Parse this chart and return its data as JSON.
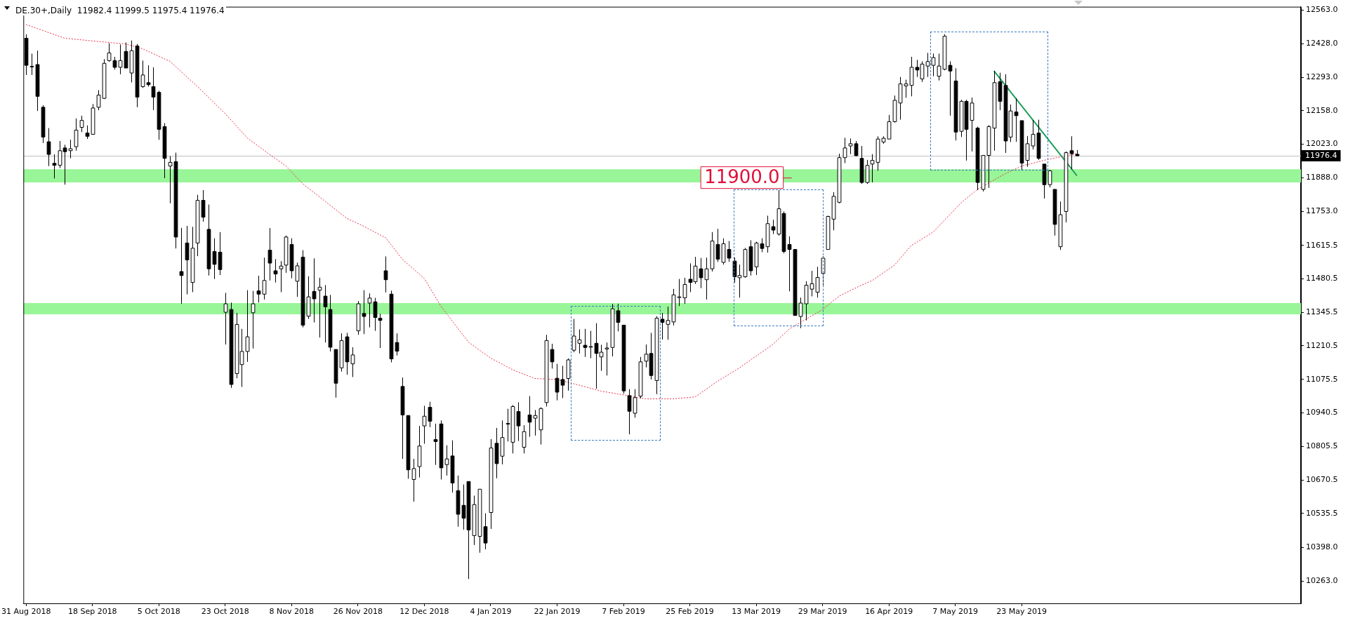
{
  "chart_data": {
    "type": "candlestick",
    "title": "DE.30+,Daily  11982.4 11999.5 11975.4 11976.4",
    "categories": [
      "31 Aug 2018",
      null,
      null,
      null,
      null,
      null,
      null,
      null,
      null,
      null,
      null,
      null,
      "18 Sep 2018",
      null,
      null,
      null,
      null,
      null,
      null,
      null,
      null,
      null,
      null,
      null,
      "5 Oct 2018",
      null,
      null,
      null,
      null,
      null,
      null,
      null,
      null,
      null,
      null,
      null,
      "23 Oct 2018",
      null,
      null,
      null,
      null,
      null,
      null,
      null,
      null,
      null,
      null,
      null,
      "8 Nov 2018",
      null,
      null,
      null,
      null,
      null,
      null,
      null,
      null,
      null,
      null,
      null,
      "26 Nov 2018",
      null,
      null,
      null,
      null,
      null,
      null,
      null,
      null,
      null,
      null,
      null,
      "12 Dec 2018",
      null,
      null,
      null,
      null,
      null,
      null,
      null,
      null,
      null,
      null,
      null,
      "4 Jan 2019",
      null,
      null,
      null,
      null,
      null,
      null,
      null,
      null,
      null,
      null,
      null,
      "22 Jan 2019",
      null,
      null,
      null,
      null,
      null,
      null,
      null,
      null,
      null,
      null,
      null,
      "7 Feb 2019",
      null,
      null,
      null,
      null,
      null,
      null,
      null,
      null,
      null,
      null,
      null,
      "25 Feb 2019",
      null,
      null,
      null,
      null,
      null,
      null,
      null,
      null,
      null,
      null,
      null,
      "13 Mar 2019",
      null,
      null,
      null,
      null,
      null,
      null,
      null,
      null,
      null,
      null,
      null,
      "29 Mar 2019",
      null,
      null,
      null,
      null,
      null,
      null,
      null,
      null,
      null,
      null,
      null,
      "16 Apr 2019",
      null,
      null,
      null,
      null,
      null,
      null,
      null,
      null,
      null,
      null,
      null,
      "7 May 2019",
      null,
      null,
      null,
      null,
      null,
      null,
      null,
      null,
      null,
      null,
      null,
      "23 May 2019",
      null,
      null,
      null,
      null,
      null,
      null,
      null,
      null,
      null,
      null,
      null,
      null,
      null,
      null,
      null,
      null,
      null,
      null,
      null,
      null,
      null,
      null,
      null,
      null,
      null,
      null,
      null,
      null,
      null,
      null,
      null,
      null,
      null,
      null,
      null,
      null,
      null,
      null,
      null,
      null,
      null,
      null,
      null,
      null,
      null,
      null,
      null,
      null,
      null,
      null
    ],
    "ohlc": [
      [
        12450,
        12466,
        12302,
        12341
      ],
      [
        12336,
        12388,
        12302,
        12337
      ],
      [
        12344,
        12400,
        12157,
        12216
      ],
      [
        12172,
        12180,
        12028,
        12052
      ],
      [
        12033,
        12088,
        11935,
        11982
      ],
      [
        11946,
        11982,
        11885,
        11938
      ],
      [
        11938,
        12036,
        11927,
        11997
      ],
      [
        12008,
        12021,
        11860,
        11993
      ],
      [
        11997,
        12041,
        11966,
        12005
      ],
      [
        12013,
        12127,
        11997,
        12080
      ],
      [
        12091,
        12138,
        12072,
        12119
      ],
      [
        12068,
        12099,
        12044,
        12055
      ],
      [
        12063,
        12185,
        12061,
        12169
      ],
      [
        12172,
        12241,
        12160,
        12221
      ],
      [
        12208,
        12366,
        12205,
        12349
      ],
      [
        12360,
        12430,
        12355,
        12391
      ],
      [
        12360,
        12375,
        12324,
        12333
      ],
      [
        12333,
        12425,
        12305,
        12360
      ],
      [
        12397,
        12433,
        12330,
        12330
      ],
      [
        12310,
        12441,
        12272,
        12400
      ],
      [
        12419,
        12427,
        12172,
        12213
      ],
      [
        12255,
        12360,
        12250,
        12302
      ],
      [
        12271,
        12341,
        12255,
        12263
      ],
      [
        12255,
        12333,
        12161,
        12213
      ],
      [
        12232,
        12238,
        12041,
        12083
      ],
      [
        12094,
        12108,
        11886,
        11966
      ],
      [
        11935,
        11975,
        11785,
        11950
      ],
      [
        11953,
        11989,
        11603,
        11649
      ],
      [
        11510,
        11686,
        11380,
        11494
      ],
      [
        11625,
        11694,
        11418,
        11557
      ],
      [
        11466,
        11690,
        11427,
        11604
      ],
      [
        11625,
        11819,
        11572,
        11797
      ],
      [
        11797,
        11838,
        11711,
        11729
      ],
      [
        11680,
        11780,
        11494,
        11521
      ],
      [
        11591,
        11644,
        11480,
        11539
      ],
      [
        11588,
        11669,
        11496,
        11518
      ],
      [
        11346,
        11424,
        11216,
        11380
      ],
      [
        11357,
        11385,
        11041,
        11055
      ],
      [
        11099,
        11343,
        11080,
        11297
      ],
      [
        11135,
        11279,
        11045,
        11188
      ],
      [
        11188,
        11435,
        11146,
        11247
      ],
      [
        11344,
        11432,
        11200,
        11380
      ],
      [
        11432,
        11493,
        11385,
        11419
      ],
      [
        11419,
        11566,
        11397,
        11474
      ],
      [
        11596,
        11685,
        11474,
        11544
      ],
      [
        11513,
        11560,
        11466,
        11500
      ],
      [
        11521,
        11552,
        11427,
        11532
      ],
      [
        11536,
        11655,
        11505,
        11649
      ],
      [
        11619,
        11644,
        11483,
        11513
      ],
      [
        11471,
        11546,
        11408,
        11533
      ],
      [
        11568,
        11596,
        11285,
        11294
      ],
      [
        11330,
        11491,
        11319,
        11408
      ],
      [
        11430,
        11563,
        11305,
        11400
      ],
      [
        11435,
        11485,
        11244,
        11447
      ],
      [
        11411,
        11455,
        11224,
        11368
      ],
      [
        11357,
        11416,
        11188,
        11205
      ],
      [
        11196,
        11196,
        11002,
        11060
      ],
      [
        11122,
        11261,
        11107,
        11232
      ],
      [
        11247,
        11263,
        11094,
        11146
      ],
      [
        11138,
        11205,
        11085,
        11174
      ],
      [
        11271,
        11391,
        11255,
        11380
      ],
      [
        11341,
        11435,
        11258,
        11329
      ],
      [
        11383,
        11422,
        11285,
        11403
      ],
      [
        11388,
        11404,
        11271,
        11325
      ],
      [
        11322,
        11340,
        11202,
        11313
      ],
      [
        11513,
        11571,
        11426,
        11477
      ],
      [
        11419,
        11433,
        11144,
        11158
      ],
      [
        11224,
        11261,
        11172,
        11189
      ],
      [
        11047,
        11083,
        10755,
        10932
      ],
      [
        10930,
        10930,
        10675,
        10711
      ],
      [
        10672,
        10755,
        10583,
        10716
      ],
      [
        10724,
        10888,
        10680,
        10807
      ],
      [
        10888,
        10969,
        10816,
        10927
      ],
      [
        10963,
        10985,
        10883,
        10907
      ],
      [
        10833,
        10897,
        10731,
        10825
      ],
      [
        10896,
        10910,
        10672,
        10719
      ],
      [
        10732,
        10810,
        10688,
        10755
      ],
      [
        10767,
        10830,
        10619,
        10658
      ],
      [
        10627,
        10688,
        10482,
        10532
      ],
      [
        10568,
        10652,
        10470,
        10516
      ],
      [
        10664,
        10664,
        10271,
        10469
      ],
      [
        10446,
        10607,
        10408,
        10571
      ],
      [
        10443,
        10633,
        10377,
        10633
      ],
      [
        10482,
        10536,
        10391,
        10416
      ],
      [
        10539,
        10835,
        10473,
        10799
      ],
      [
        10818,
        10880,
        10677,
        10736
      ],
      [
        10766,
        10910,
        10733,
        10841
      ],
      [
        10896,
        10957,
        10825,
        10898
      ],
      [
        10822,
        10972,
        10777,
        10966
      ],
      [
        10946,
        10983,
        10827,
        10888
      ],
      [
        10802,
        10891,
        10777,
        10865
      ],
      [
        10932,
        11008,
        10844,
        10903
      ],
      [
        10919,
        10952,
        10849,
        10930
      ],
      [
        10872,
        10963,
        10813,
        10958
      ],
      [
        10982,
        11255,
        10966,
        11232
      ],
      [
        11196,
        11219,
        11119,
        11146
      ],
      [
        11080,
        11138,
        10991,
        11024
      ],
      [
        11075,
        11130,
        11000,
        11052
      ],
      [
        11079,
        11160,
        11030,
        11154
      ],
      [
        11193,
        11319,
        11185,
        11250
      ],
      [
        11221,
        11277,
        11180,
        11235
      ],
      [
        11213,
        11279,
        11166,
        11204
      ],
      [
        11208,
        11271,
        11161,
        11208
      ],
      [
        11221,
        11302,
        11038,
        11180
      ],
      [
        11166,
        11215,
        11110,
        11185
      ],
      [
        11198,
        11224,
        11091,
        11202
      ],
      [
        11204,
        11380,
        11168,
        11360
      ],
      [
        11352,
        11380,
        11269,
        11305
      ],
      [
        11294,
        11294,
        11018,
        11029
      ],
      [
        11010,
        11036,
        10854,
        10947
      ],
      [
        10939,
        11036,
        10921,
        11002
      ],
      [
        11008,
        11166,
        10999,
        11146
      ],
      [
        11149,
        11216,
        11124,
        11177
      ],
      [
        11180,
        11263,
        11075,
        11091
      ],
      [
        11071,
        11330,
        11016,
        11322
      ],
      [
        11318,
        11343,
        11236,
        11305
      ],
      [
        11297,
        11369,
        11235,
        11313
      ],
      [
        11307,
        11440,
        11293,
        11416
      ],
      [
        11408,
        11480,
        11371,
        11408
      ],
      [
        11404,
        11485,
        11380,
        11458
      ],
      [
        11479,
        11543,
        11427,
        11466
      ],
      [
        11469,
        11569,
        11460,
        11532
      ],
      [
        11521,
        11565,
        11443,
        11485
      ],
      [
        11477,
        11566,
        11397,
        11521
      ],
      [
        11521,
        11669,
        11510,
        11633
      ],
      [
        11619,
        11682,
        11549,
        11560
      ],
      [
        11547,
        11644,
        11538,
        11622
      ],
      [
        11599,
        11633,
        11549,
        11564
      ],
      [
        11552,
        11566,
        11466,
        11489
      ],
      [
        11485,
        11538,
        11405,
        11494
      ],
      [
        11489,
        11605,
        11485,
        11599
      ],
      [
        11610,
        11636,
        11494,
        11513
      ],
      [
        11529,
        11630,
        11496,
        11625
      ],
      [
        11622,
        11644,
        11588,
        11603
      ],
      [
        11610,
        11735,
        11586,
        11703
      ],
      [
        11691,
        11719,
        11661,
        11677
      ],
      [
        11661,
        11838,
        11655,
        11763
      ],
      [
        11744,
        11752,
        11583,
        11591
      ],
      [
        11619,
        11652,
        11430,
        11599
      ],
      [
        11599,
        11599,
        11333,
        11333
      ],
      [
        11329,
        11405,
        11282,
        11383
      ],
      [
        11380,
        11471,
        11313,
        11455
      ],
      [
        11439,
        11513,
        11410,
        11461
      ],
      [
        11427,
        11529,
        11405,
        11486
      ],
      [
        11502,
        11572,
        11454,
        11564
      ],
      [
        11599,
        11735,
        11599,
        11732
      ],
      [
        11721,
        11830,
        11676,
        11813
      ],
      [
        11789,
        11985,
        11785,
        11969
      ],
      [
        11969,
        12049,
        11947,
        12008
      ],
      [
        12016,
        12046,
        11983,
        12025
      ],
      [
        12025,
        12036,
        11974,
        11977
      ],
      [
        11966,
        12016,
        11863,
        11869
      ],
      [
        11869,
        11960,
        11863,
        11938
      ],
      [
        11943,
        11983,
        11869,
        11958
      ],
      [
        11950,
        12055,
        11916,
        12044
      ],
      [
        12032,
        12055,
        12025,
        12047
      ],
      [
        12044,
        12141,
        12044,
        12114
      ],
      [
        12114,
        12219,
        12110,
        12200
      ],
      [
        12189,
        12294,
        12122,
        12266
      ],
      [
        12258,
        12283,
        12210,
        12266
      ],
      [
        12260,
        12375,
        12216,
        12333
      ],
      [
        12333,
        12363,
        12294,
        12322
      ],
      [
        12286,
        12357,
        12274,
        12346
      ],
      [
        12338,
        12391,
        12294,
        12356
      ],
      [
        12341,
        12388,
        12297,
        12372
      ],
      [
        12297,
        12388,
        12280,
        12338
      ],
      [
        12325,
        12466,
        12321,
        12458
      ],
      [
        12341,
        12357,
        12138,
        12318
      ],
      [
        12278,
        12329,
        12038,
        12072
      ],
      [
        12075,
        12202,
        12052,
        12196
      ],
      [
        12196,
        12202,
        11957,
        12083
      ],
      [
        12119,
        12211,
        11994,
        12189
      ],
      [
        12088,
        12094,
        11838,
        11869
      ],
      [
        11841,
        11978,
        11833,
        11978
      ],
      [
        11978,
        12100,
        11847,
        12094
      ],
      [
        12088,
        12319,
        11997,
        12271
      ],
      [
        12275,
        12311,
        12160,
        12196
      ],
      [
        12260,
        12305,
        11988,
        12036
      ],
      [
        12052,
        12183,
        12032,
        12157
      ],
      [
        12153,
        12208,
        12033,
        12138
      ],
      [
        12118,
        12118,
        11919,
        11947
      ],
      [
        11958,
        12056,
        11932,
        12025
      ],
      [
        12016,
        12121,
        12002,
        12063
      ],
      [
        12068,
        12122,
        11960,
        11966
      ],
      [
        11943,
        11943,
        11804,
        11860
      ],
      [
        11860,
        11919,
        11849,
        11916
      ],
      [
        11841,
        11841,
        11655,
        11700
      ],
      [
        11610,
        11792,
        11597,
        11739
      ],
      [
        11752,
        11994,
        11708,
        11989
      ],
      [
        11997,
        12055,
        11922,
        11985
      ],
      [
        11982.4,
        11999.5,
        11975.4,
        11976.4
      ],
      null,
      null,
      null,
      null,
      null,
      null,
      null,
      null,
      null,
      null,
      null,
      null,
      null,
      null,
      null,
      null,
      null,
      null,
      null,
      null,
      null,
      null,
      null,
      null,
      null,
      null,
      null,
      null,
      null,
      null,
      null,
      null,
      null,
      null,
      null,
      null,
      null,
      null,
      null,
      null
    ],
    "series": [
      {
        "type": "line",
        "color": "#e8334a",
        "line_style": "dotted",
        "values": [
          12505,
          null,
          null,
          null,
          null,
          null,
          null,
          12450,
          null,
          null,
          null,
          null,
          null,
          null,
          12435,
          null,
          null,
          null,
          12427,
          null,
          null,
          12408,
          null,
          null,
          null,
          null,
          12357,
          null,
          null,
          null,
          null,
          12255,
          null,
          null,
          null,
          null,
          12146,
          null,
          null,
          null,
          12048,
          null,
          null,
          null,
          11982,
          null,
          null,
          11935,
          null,
          null,
          11864,
          null,
          null,
          null,
          11794,
          null,
          null,
          null,
          11724,
          null,
          null,
          11693,
          null,
          null,
          null,
          11646,
          null,
          null,
          11560,
          null,
          null,
          null,
          11482,
          null,
          null,
          11370,
          null,
          null,
          null,
          null,
          11225,
          null,
          null,
          null,
          11161,
          null,
          null,
          null,
          11114,
          null,
          null,
          null,
          11079,
          null,
          null,
          null,
          11075,
          null,
          null,
          null,
          11052,
          null,
          null,
          null,
          11028,
          null,
          null,
          null,
          11013,
          null,
          null,
          null,
          10997,
          null,
          null,
          null,
          null,
          10997,
          null,
          null,
          null,
          11005,
          null,
          null,
          null,
          11068,
          null,
          null,
          null,
          11122,
          null,
          11154,
          null,
          null,
          null,
          11216,
          null,
          null,
          11279,
          null,
          null,
          11318,
          null,
          null,
          11357,
          null,
          null,
          11411,
          null,
          null,
          null,
          11455,
          null,
          11474,
          null,
          null,
          null,
          11536,
          null,
          null,
          11614,
          null,
          null,
          null,
          11669,
          null,
          null,
          null,
          null,
          11786,
          null,
          null,
          11841,
          null,
          null,
          null,
          null,
          11904,
          null,
          null,
          11935,
          null,
          null,
          null,
          11958,
          null,
          null,
          null,
          null,
          null,
          11985,
          null,
          null,
          null,
          null,
          null,
          null,
          null,
          null,
          null,
          null,
          null,
          null,
          null,
          null,
          null,
          null,
          null,
          null,
          null,
          null,
          null,
          null,
          null,
          null,
          null,
          null,
          null,
          null,
          null,
          null,
          null,
          null,
          null,
          null,
          null,
          null,
          null,
          null,
          null,
          null
        ]
      },
      {
        "type": "line",
        "color": "#1e9e5a",
        "line_style": "solid",
        "values": [
          null,
          null,
          null,
          null,
          null,
          null,
          null,
          null,
          null,
          null,
          null,
          null,
          null,
          null,
          null,
          null,
          null,
          null,
          null,
          null,
          null,
          null,
          null,
          null,
          null,
          null,
          null,
          null,
          null,
          null,
          null,
          null,
          null,
          null,
          null,
          null,
          null,
          null,
          null,
          null,
          null,
          null,
          null,
          null,
          null,
          null,
          null,
          null,
          null,
          null,
          null,
          null,
          null,
          null,
          null,
          null,
          null,
          null,
          null,
          null,
          null,
          null,
          null,
          null,
          null,
          null,
          null,
          null,
          null,
          null,
          null,
          null,
          null,
          null,
          null,
          null,
          null,
          null,
          null,
          null,
          null,
          null,
          null,
          null,
          null,
          null,
          null,
          null,
          null,
          null,
          null,
          null,
          null,
          null,
          null,
          null,
          null,
          null,
          null,
          null,
          null,
          null,
          null,
          null,
          null,
          null,
          null,
          null,
          null,
          null,
          null,
          null,
          null,
          null,
          null,
          null,
          null,
          null,
          null,
          null,
          null,
          null,
          null,
          null,
          null,
          null,
          null,
          null,
          null,
          null,
          null,
          null,
          null,
          null,
          null,
          null,
          null,
          null,
          null,
          null,
          null,
          null,
          null,
          null,
          null,
          null,
          null,
          null,
          null,
          null,
          null,
          null,
          null,
          null,
          null,
          null,
          null,
          null,
          null,
          null,
          null,
          null,
          null,
          null,
          null,
          null,
          null,
          null,
          null,
          null,
          null,
          null,
          null,
          null,
          null,
          12318,
          null,
          null,
          null,
          null,
          null,
          null,
          null,
          null,
          null,
          null,
          null,
          null,
          null,
          null,
          11896,
          null,
          null,
          null,
          null,
          null,
          null,
          null,
          null,
          null,
          null,
          null,
          null,
          null,
          null,
          null,
          null,
          null,
          null,
          null,
          null,
          null,
          null,
          null,
          null,
          null,
          null,
          null,
          null,
          null,
          null,
          null,
          null,
          null,
          null,
          null,
          null,
          null,
          null,
          null,
          null
        ]
      }
    ],
    "ylim": [
      10173,
      12577
    ],
    "yticks": [
      {
        "value": 12563,
        "label": "12563.0"
      },
      {
        "value": 12428,
        "label": "12428.0"
      },
      {
        "value": 12293,
        "label": "12293.0"
      },
      {
        "value": 12158,
        "label": "12158.0"
      },
      {
        "value": 12023,
        "label": "12023.0"
      },
      {
        "value": 11888,
        "label": "11888.0"
      },
      {
        "value": 11753,
        "label": "11753.0"
      },
      {
        "value": 11615.5,
        "label": "11615.5"
      },
      {
        "value": 11480.5,
        "label": "11480.5"
      },
      {
        "value": 11345.5,
        "label": "11345.5"
      },
      {
        "value": 11210.5,
        "label": "11210.5"
      },
      {
        "value": 11075.5,
        "label": "11075.5"
      },
      {
        "value": 10940.5,
        "label": "10940.5"
      },
      {
        "value": 10805.5,
        "label": "10805.5"
      },
      {
        "value": 10670.5,
        "label": "10670.5"
      },
      {
        "value": 10535.5,
        "label": "10535.5"
      },
      {
        "value": 10398,
        "label": "10398.0"
      },
      {
        "value": 10263,
        "label": "10263.0"
      }
    ],
    "ref_lines": [
      {
        "axis": "y",
        "value": 11976.4,
        "label": "11976.4",
        "color": "#c0c0c0"
      }
    ],
    "bands": [
      {
        "axis": "y",
        "from": 11869,
        "to": 11922,
        "color": "#98f598"
      },
      {
        "axis": "y",
        "from": 11338,
        "to": 11383,
        "color": "#98f598"
      }
    ],
    "annotations": [
      "11900.0"
    ],
    "grid": false,
    "legend": false
  }
}
